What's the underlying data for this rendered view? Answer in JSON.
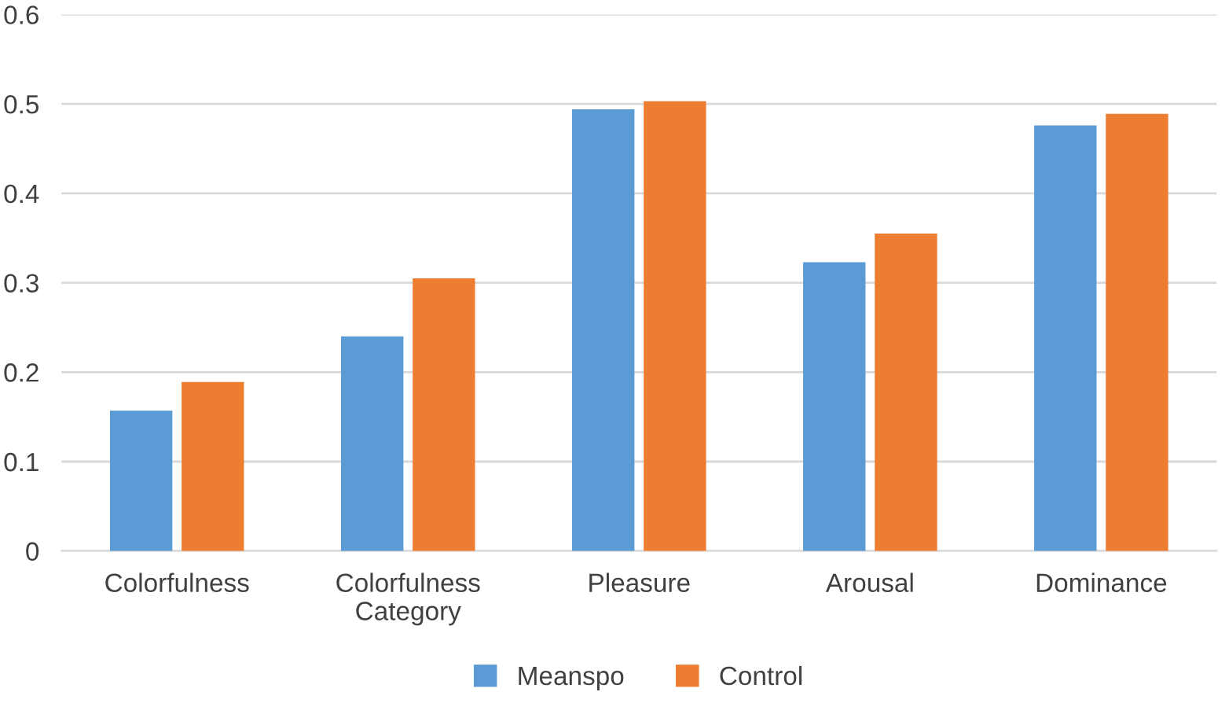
{
  "chart_data": {
    "type": "bar",
    "categories": [
      "Colorfulness",
      "Colorfulness\nCategory",
      "Pleasure",
      "Arousal",
      "Dominance"
    ],
    "series": [
      {
        "name": "Meanspo",
        "color": "#5b9bd5",
        "values": [
          0.157,
          0.24,
          0.494,
          0.323,
          0.476
        ]
      },
      {
        "name": "Control",
        "color": "#ed7d31",
        "values": [
          0.189,
          0.305,
          0.503,
          0.355,
          0.489
        ]
      }
    ],
    "ylim": [
      0,
      0.6
    ],
    "yticks": [
      {
        "value": 0,
        "label": "0"
      },
      0.1,
      0.2,
      0.3,
      0.4,
      0.5,
      0.6
    ],
    "grid": "y",
    "legend": "bottom"
  }
}
